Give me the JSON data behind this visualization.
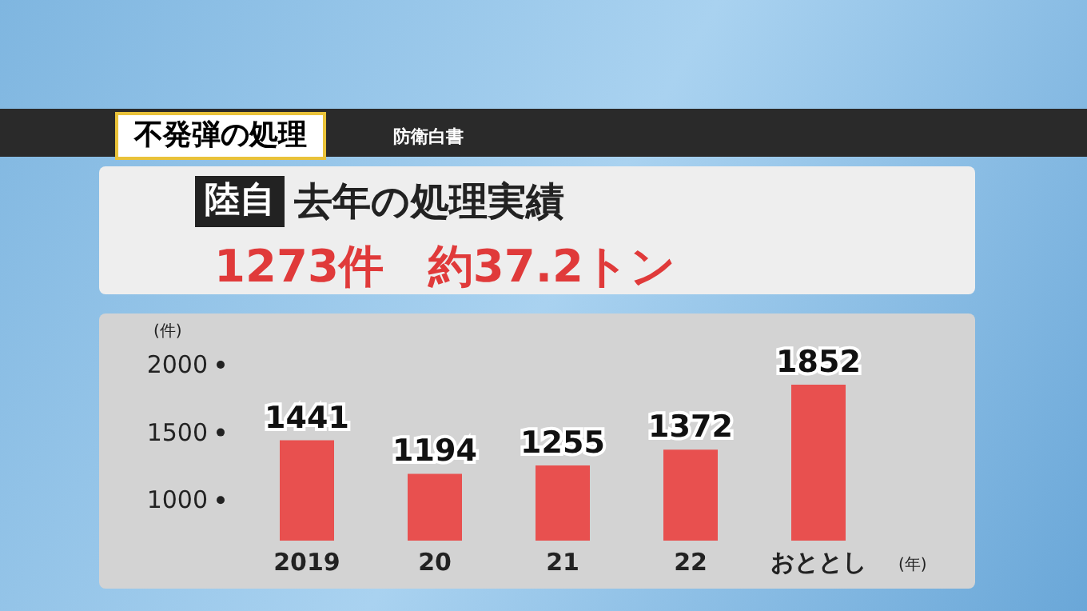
{
  "chart_data": {
    "type": "bar",
    "title": "不発弾の処理",
    "subtitle": "去年の処理実績",
    "annotations": [
      "防衛白書",
      "陸自",
      "1273件　約37.2トン"
    ],
    "ylabel": "(件)",
    "xlabel": "(年)",
    "categories": [
      "2019",
      "20",
      "21",
      "22",
      "おととし"
    ],
    "values": [
      1441,
      1194,
      1255,
      1372,
      1852
    ],
    "color": "#e8504f",
    "ylim": [
      700,
      2000
    ],
    "yticks": [
      1000,
      1500,
      2000
    ],
    "data_labels": true,
    "grid": false
  }
}
